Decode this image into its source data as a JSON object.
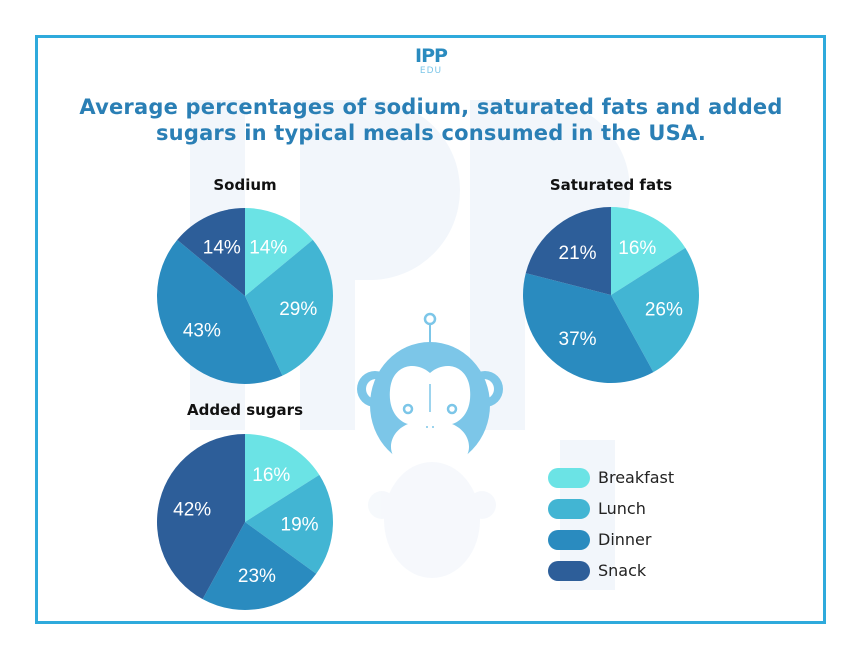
{
  "logo": {
    "main": "IPP",
    "sub": "EDU"
  },
  "title_line1": "Average percentages of sodium, saturated fats and added",
  "title_line2": "sugars in typical meals consumed in the USA.",
  "colors": {
    "Breakfast": "#6be3e5",
    "Lunch": "#42b5d3",
    "Dinner": "#2a8bbf",
    "Snack": "#2d5e99",
    "accent": "#2eaadc",
    "title": "#2a7fb5",
    "mascot": "#7cc6e8"
  },
  "legend": [
    {
      "label": "Breakfast",
      "color": "#6be3e5"
    },
    {
      "label": "Lunch",
      "color": "#42b5d3"
    },
    {
      "label": "Dinner",
      "color": "#2a8bbf"
    },
    {
      "label": "Snack",
      "color": "#2d5e99"
    }
  ],
  "chart_data": [
    {
      "type": "pie",
      "title": "Sodium",
      "categories": [
        "Breakfast",
        "Lunch",
        "Dinner",
        "Snack"
      ],
      "values": [
        14,
        29,
        43,
        14
      ],
      "labels": [
        "14%",
        "29%",
        "43%",
        "14%"
      ],
      "start": "12 o'clock",
      "direction": "clockwise"
    },
    {
      "type": "pie",
      "title": "Saturated fats",
      "categories": [
        "Breakfast",
        "Lunch",
        "Dinner",
        "Snack"
      ],
      "values": [
        16,
        26,
        37,
        21
      ],
      "labels": [
        "16%",
        "26%",
        "37%",
        "21%"
      ],
      "start": "12 o'clock",
      "direction": "clockwise"
    },
    {
      "type": "pie",
      "title": "Added sugars",
      "categories": [
        "Breakfast",
        "Lunch",
        "Dinner",
        "Snack"
      ],
      "values": [
        16,
        19,
        23,
        42
      ],
      "labels": [
        "16%",
        "19%",
        "23%",
        "42%"
      ],
      "start": "12 o'clock",
      "direction": "clockwise"
    }
  ]
}
